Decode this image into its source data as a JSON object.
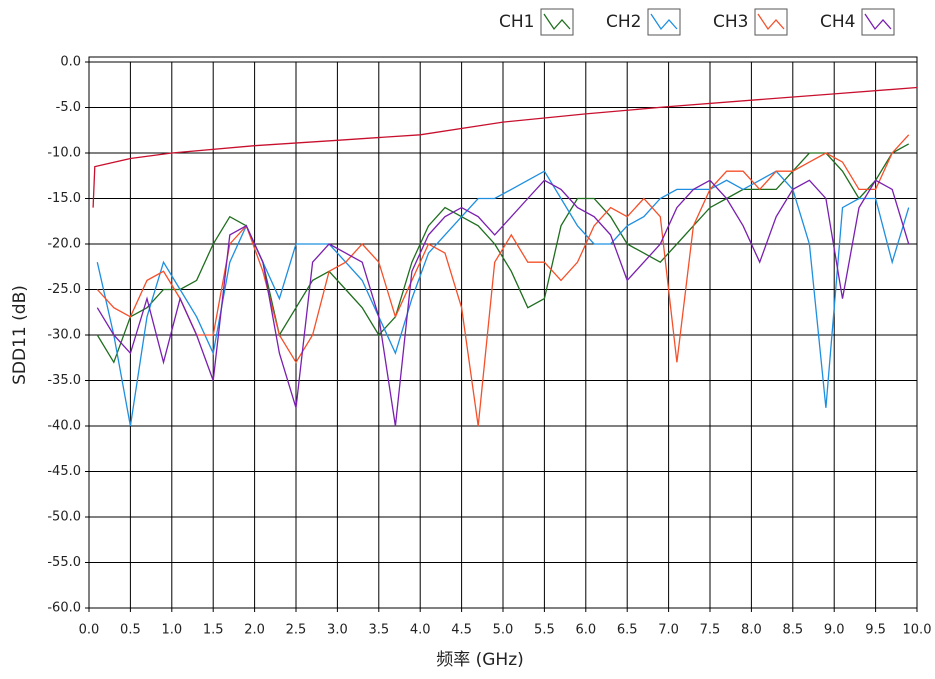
{
  "chart_data": {
    "type": "line",
    "xlabel": "频率 (GHz)",
    "ylabel": "SDD11 (dB)",
    "grid": true,
    "legend": "top-right",
    "xlim": [
      0,
      10
    ],
    "ylim": [
      -60,
      0
    ],
    "xticks": [
      {
        "value": 0,
        "label": "0.0"
      },
      0.5,
      {
        "value": 1,
        "label": "1.0"
      },
      1.5,
      {
        "value": 2,
        "label": "2.0"
      },
      2.5,
      {
        "value": 3,
        "label": "3.0"
      },
      3.5,
      {
        "value": 4,
        "label": "4.0"
      },
      4.5,
      {
        "value": 5,
        "label": "5.0"
      },
      5.5,
      {
        "value": 6,
        "label": "6.0"
      },
      6.5,
      {
        "value": 7,
        "label": "7.0"
      },
      7.5,
      {
        "value": 8,
        "label": "8.0"
      },
      8.5,
      {
        "value": 9,
        "label": "9.0"
      },
      9.5,
      {
        "value": 10,
        "label": "10.0"
      }
    ],
    "yticks": [
      {
        "value": 0,
        "label": "0.0"
      },
      {
        "value": -5,
        "label": "-5.0"
      },
      {
        "value": -10,
        "label": "-10.0"
      },
      {
        "value": -15,
        "label": "-15.0"
      },
      {
        "value": -20,
        "label": "-20.0"
      },
      {
        "value": -25,
        "label": "-25.0"
      },
      {
        "value": -30,
        "label": "-30.0"
      },
      {
        "value": -35,
        "label": "-35.0"
      },
      {
        "value": -40,
        "label": "-40.0"
      },
      {
        "value": -45,
        "label": "-45.0"
      },
      {
        "value": -50,
        "label": "-50.0"
      },
      {
        "value": -55,
        "label": "-55.0"
      },
      {
        "value": -60,
        "label": "-60.0"
      }
    ],
    "x": [
      0.1,
      0.3,
      0.5,
      0.7,
      0.9,
      1.1,
      1.3,
      1.5,
      1.7,
      1.9,
      2.1,
      2.3,
      2.5,
      2.7,
      2.9,
      3.1,
      3.3,
      3.5,
      3.7,
      3.9,
      4.1,
      4.3,
      4.5,
      4.7,
      4.9,
      5.1,
      5.3,
      5.5,
      5.7,
      5.9,
      6.1,
      6.3,
      6.5,
      6.7,
      6.9,
      7.1,
      7.3,
      7.5,
      7.7,
      7.9,
      8.1,
      8.3,
      8.5,
      8.7,
      8.9,
      9.1,
      9.3,
      9.5,
      9.7,
      9.9
    ],
    "series": [
      {
        "name": "CH1",
        "color": "#1f6e1f",
        "values": [
          -30,
          -33,
          -28,
          -27,
          -25,
          -25,
          -24,
          -20,
          -17,
          -18,
          -22,
          -30,
          -27,
          -24,
          -23,
          -25,
          -27,
          -30,
          -28,
          -22,
          -18,
          -16,
          -17,
          -18,
          -20,
          -23,
          -27,
          -26,
          -18,
          -15,
          -15,
          -17,
          -20,
          -21,
          -22,
          -20,
          -18,
          -16,
          -15,
          -14,
          -14,
          -14,
          -12,
          -10,
          -10,
          -12,
          -15,
          -13,
          -10,
          -9
        ]
      },
      {
        "name": "CH2",
        "color": "#1e8fe0",
        "values": [
          -22,
          -30,
          -40,
          -28,
          -22,
          -25,
          -28,
          -32,
          -22,
          -18,
          -22,
          -26,
          -20,
          -20,
          -20,
          -22,
          -24,
          -28,
          -32,
          -26,
          -21,
          -19,
          -17,
          -15,
          -15,
          -14,
          -13,
          -12,
          -15,
          -18,
          -20,
          -20,
          -18,
          -17,
          -15,
          -14,
          -14,
          -14,
          -13,
          -14,
          -13,
          -12,
          -14,
          -20,
          -38,
          -16,
          -15,
          -15,
          -22,
          -16
        ]
      },
      {
        "name": "CH3",
        "color": "#f5502a",
        "values": [
          -25,
          -27,
          -28,
          -24,
          -23,
          -26,
          -30,
          -30,
          -20,
          -18,
          -23,
          -30,
          -33,
          -30,
          -23,
          -22,
          -20,
          -22,
          -28,
          -24,
          -20,
          -21,
          -27,
          -40,
          -22,
          -19,
          -22,
          -22,
          -24,
          -22,
          -18,
          -16,
          -17,
          -15,
          -17,
          -33,
          -18,
          -14,
          -12,
          -12,
          -14,
          -12,
          -12,
          -11,
          -10,
          -11,
          -14,
          -14,
          -10,
          -8
        ]
      },
      {
        "name": "CH4",
        "color": "#7a1fb0",
        "values": [
          -27,
          -30,
          -32,
          -26,
          -33,
          -26,
          -30,
          -35,
          -19,
          -18,
          -22,
          -32,
          -38,
          -22,
          -20,
          -21,
          -22,
          -28,
          -40,
          -23,
          -19,
          -17,
          -16,
          -17,
          -19,
          -17,
          -15,
          -13,
          -14,
          -16,
          -17,
          -19,
          -24,
          -22,
          -20,
          -16,
          -14,
          -13,
          -15,
          -18,
          -22,
          -17,
          -14,
          -13,
          -15,
          -26,
          -16,
          -13,
          -14,
          -20
        ]
      }
    ],
    "limit_line": {
      "color": "#c8102e",
      "x": [
        0.05,
        0.07,
        0.5,
        1,
        2,
        3,
        4,
        5,
        6,
        7,
        8,
        9,
        10
      ],
      "values": [
        -16,
        -11.5,
        -10.6,
        -10,
        -9.2,
        -8.6,
        -8,
        -6.6,
        -5.7,
        -4.9,
        -4.2,
        -3.5,
        -2.8
      ]
    }
  }
}
